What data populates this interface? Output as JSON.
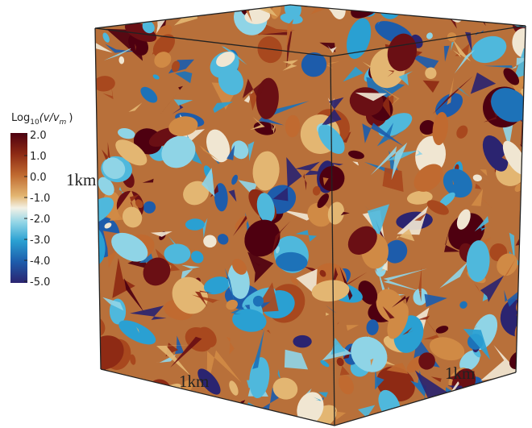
{
  "colorbar": {
    "title": {
      "base": "Log",
      "base_sub": "10",
      "arg": "(v/v",
      "arg_sub": "m",
      "close": ")"
    },
    "ticks": [
      "2.0",
      "1.0",
      "0.0",
      "-1.0",
      "-2.0",
      "-3.0",
      "-4.0",
      "-5.0"
    ]
  },
  "axes": {
    "left": "1km",
    "front": "1km",
    "right": "1km"
  }
}
